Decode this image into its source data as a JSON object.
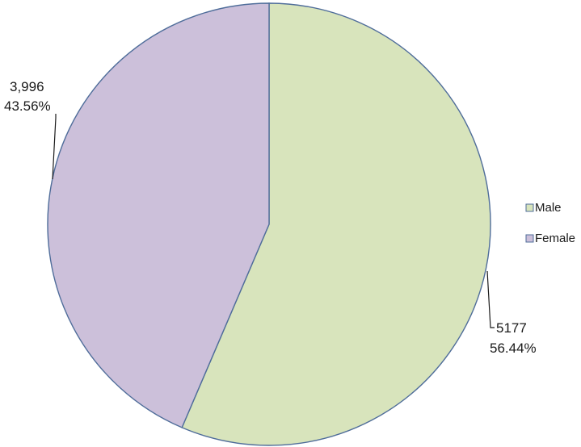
{
  "chart_data": {
    "type": "pie",
    "categories": [
      "Male",
      "Female"
    ],
    "values": [
      5177,
      3996
    ],
    "percentages": [
      "56.44%",
      "43.56%"
    ],
    "value_labels": [
      "5177",
      "3,996"
    ],
    "legend": {
      "position": "right",
      "entries": [
        "Male",
        "Female"
      ]
    },
    "colors": [
      "#d8e4bc",
      "#ccc0da"
    ],
    "edge_color": "#4f6d9a"
  }
}
